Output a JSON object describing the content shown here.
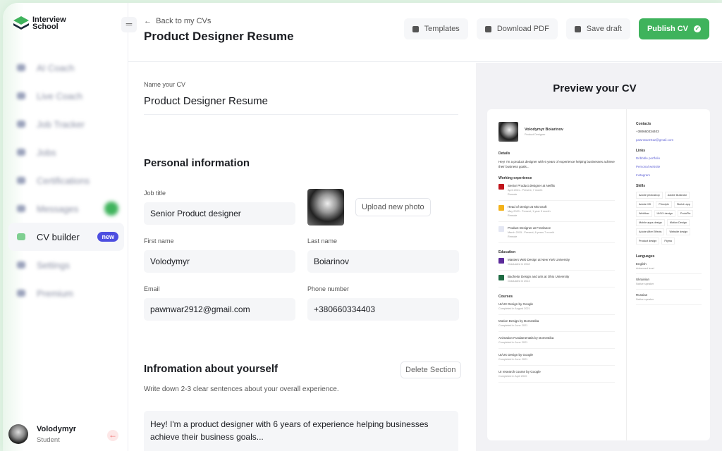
{
  "brand": {
    "name": "Interview School"
  },
  "sidebar": {
    "items": [
      {
        "label": "AI Coach",
        "blurred": true
      },
      {
        "label": "Live Coach",
        "blurred": true
      },
      {
        "label": "Job Tracker",
        "blurred": true
      },
      {
        "label": "Jobs",
        "blurred": true
      },
      {
        "label": "Certifications",
        "blurred": true
      },
      {
        "label": "Messages",
        "blurred": true
      },
      {
        "label": "CV builder",
        "badge": "new",
        "active": true
      },
      {
        "label": "Settings",
        "blurred": true
      },
      {
        "label": "Premium",
        "blurred": true
      }
    ],
    "user": {
      "name": "Volodymyr",
      "role": "Student"
    }
  },
  "header": {
    "back": "Back to my CVs",
    "title": "Product Designer Resume",
    "templates": "Templates",
    "download": "Download PDF",
    "save": "Save draft",
    "publish": "Publish CV"
  },
  "form": {
    "cv_name_label": "Name your CV",
    "cv_name": "Product Designer Resume",
    "personal_title": "Personal information",
    "job_title_label": "Job title",
    "job_title": "Senior Product designer",
    "upload": "Upload new photo",
    "first_name_label": "First name",
    "first_name": "Volodymyr",
    "last_name_label": "Last name",
    "last_name": "Boiarinov",
    "email_label": "Email",
    "email": "pawnwar2912@gmail.com",
    "phone_label": "Phone number",
    "phone": "+380660334403",
    "about_title": "Infromation about yourself",
    "delete": "Delete Section",
    "about_hint": "Write down 2-3 clear sentences about your overall experience.",
    "about": "Hey! I'm a product designer with 6 years of experience helping businesses achieve their business goals..."
  },
  "preview": {
    "title": "Preview your CV",
    "name": "Volodymyr Boiarinov",
    "role": "Product Designer",
    "details_h": "Details",
    "details": "Hey! I'm a product designer with 6 years of experience helping businesses achieve their business goals...",
    "work_h": "Working experience",
    "work": [
      {
        "title": "Senior Product designer at Netflix",
        "date": "April 2021 - Present, 7 month",
        "loc": "Remote",
        "color": "#c0141b"
      },
      {
        "title": "Head of Design at Microsoft",
        "date": "May 2020 - Present, 1 year 5 month",
        "loc": "Remote",
        "color": "#f3b21b"
      },
      {
        "title": "Product Designer at Freelance",
        "date": "March 2015 - Present, 6 years 7 month",
        "loc": "Remote",
        "color": "#e4e7f3"
      }
    ],
    "edu_h": "Education",
    "edu": [
      {
        "title": "Masters Web Design at New York University",
        "date": "Graduated in 2018",
        "color": "#5b2a9a"
      },
      {
        "title": "Bachelor Design and arts at Ohio University",
        "date": "Graduated in 2014",
        "color": "#1f6b43"
      }
    ],
    "courses_h": "Courses",
    "courses": [
      {
        "title": "UI/UX Design by Google",
        "date": "Completed in August 2021"
      },
      {
        "title": "Motion Design by Domestika",
        "date": "Completed in June 2021"
      },
      {
        "title": "Animation Fundamentals by Domestika",
        "date": "Completed in June 2021"
      },
      {
        "title": "UI/UX Design by Google",
        "date": "Completed in June 2021"
      },
      {
        "title": "UI research course by Google",
        "date": "Completed in April 2020"
      }
    ],
    "contacts_h": "Contacts",
    "phone": "+380660334403",
    "email": "pawnwar2912@gmail.com",
    "links_h": "Links",
    "links": [
      "Dribbble portfolio",
      "Personal website",
      "Instagram"
    ],
    "skills_h": "Skills",
    "skills": [
      "Adobe photoshop",
      "Adobe illustrator",
      "Adobe XD",
      "Principle",
      "Sketch app",
      "Webflow",
      "UI/UX design",
      "ProtoPie",
      "Mobile apps design",
      "Motion Design",
      "Adobe After Effects",
      "Website design",
      "Product design",
      "Figma"
    ],
    "languages_h": "Languages",
    "languages": [
      {
        "name": "English",
        "level": "Advanced level"
      },
      {
        "name": "Ukrainian",
        "level": "Native speaker"
      },
      {
        "name": "Russian",
        "level": "Native speaker"
      }
    ]
  },
  "colors": {
    "accent": "#3fb35c",
    "badge": "#4d4ee0"
  }
}
